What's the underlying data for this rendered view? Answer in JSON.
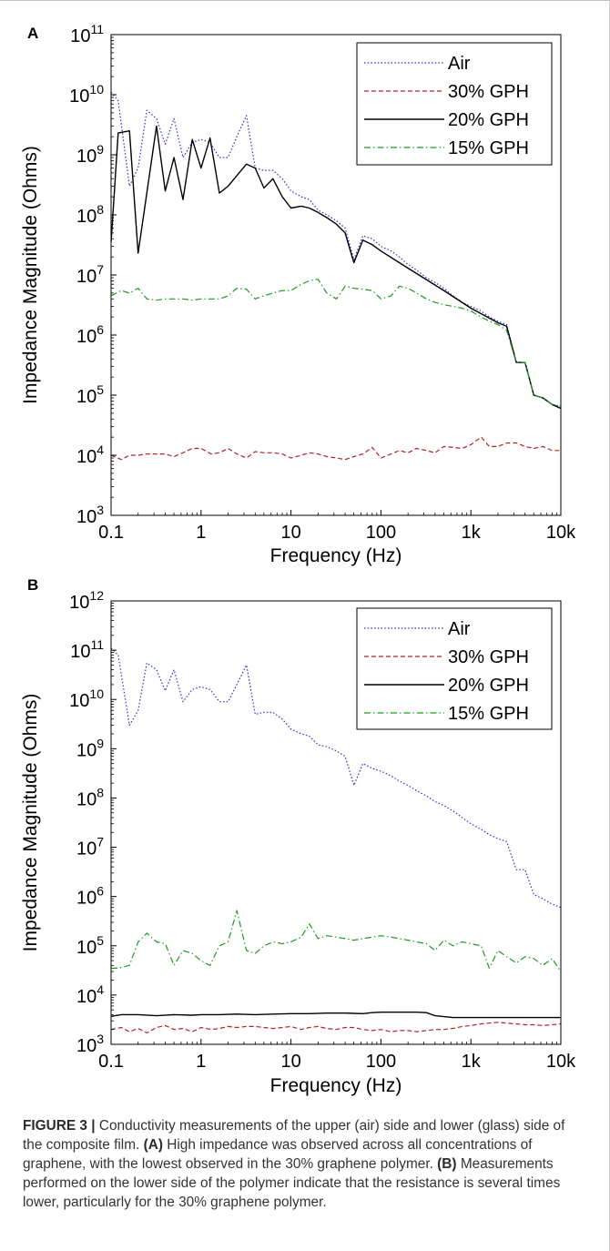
{
  "figure": {
    "caption_label": "FIGURE 3 |",
    "caption_text": "Conductivity measurements of the upper (air) side and lower (glass) side of the composite film.",
    "caption_a_label": "(A)",
    "caption_a_text": "High impedance was observed across all concentrations of graphene, with the lowest observed in the 30% graphene polymer.",
    "caption_b_label": "(B)",
    "caption_b_text": "Measurements performed on the lower side of the polymer indicate that the resistance is several times lower, particularly for the 30% graphene polymer."
  },
  "colors": {
    "air": "#2b2bd6",
    "gph30": "#b22222",
    "gph20": "#000000",
    "gph15": "#1f9a1f"
  },
  "chart_data": [
    {
      "panel": "A",
      "type": "line",
      "xlabel": "Frequency (Hz)",
      "ylabel": "Impedance Magnitude (Ohms)",
      "xscale": "log",
      "yscale": "log",
      "xlim": [
        0.1,
        10000
      ],
      "ylim": [
        1000,
        100000000000
      ],
      "x_ticks": [
        0.1,
        1,
        10,
        100,
        1000,
        10000
      ],
      "x_tick_labels": [
        "0.1",
        "1",
        "10",
        "100",
        "1k",
        "10k"
      ],
      "y_ticks": [
        1000,
        10000,
        100000,
        1000000,
        10000000,
        100000000,
        1000000000,
        10000000000,
        100000000000
      ],
      "y_tick_labels": [
        {
          "base": "10",
          "exp": "3"
        },
        {
          "base": "10",
          "exp": "4"
        },
        {
          "base": "10",
          "exp": "5"
        },
        {
          "base": "10",
          "exp": "6"
        },
        {
          "base": "10",
          "exp": "7"
        },
        {
          "base": "10",
          "exp": "8"
        },
        {
          "base": "10",
          "exp": "9"
        },
        {
          "base": "10",
          "exp": "10"
        },
        {
          "base": "10",
          "exp": "11"
        }
      ],
      "legend_position": "top-right",
      "series": [
        {
          "name": "Air",
          "style": "dotted",
          "x": [
            0.1,
            0.12,
            0.16,
            0.2,
            0.25,
            0.32,
            0.4,
            0.5,
            0.63,
            0.8,
            1.0,
            1.26,
            1.6,
            2.0,
            2.5,
            3.2,
            4.0,
            5.0,
            6.3,
            8.0,
            10,
            13,
            16,
            20,
            25,
            32,
            40,
            50,
            63,
            80,
            100,
            130,
            160,
            200,
            250,
            320,
            400,
            500,
            630,
            800,
            1000,
            1300,
            1600,
            2000,
            2500,
            3200,
            4000,
            5000,
            6300,
            8000,
            10000
          ],
          "y": [
            11000000000.0,
            8000000000.0,
            300000000.0,
            600000000.0,
            5500000000.0,
            4000000000.0,
            1500000000.0,
            4000000000.0,
            900000000.0,
            1600000000.0,
            1800000000.0,
            1600000000.0,
            900000000.0,
            900000000.0,
            2000000000.0,
            4500000000.0,
            600000000.0,
            550000000.0,
            550000000.0,
            400000000.0,
            250000000.0,
            200000000.0,
            180000000.0,
            120000000.0,
            100000000.0,
            80000000.0,
            60000000.0,
            18000000.0,
            45000000.0,
            40000000.0,
            30000000.0,
            25000000.0,
            20000000.0,
            15000000.0,
            12000000.0,
            9000000.0,
            7500000.0,
            6000000.0,
            4500000.0,
            3500000.0,
            3000000.0,
            2500000.0,
            2000000.0,
            1700000.0,
            1500000.0,
            350000.0,
            350000.0,
            100000.0,
            90000.0,
            70000.0,
            65000.0
          ]
        },
        {
          "name": "30% GPH",
          "style": "dashed",
          "x": [
            0.1,
            0.13,
            0.16,
            0.2,
            0.25,
            0.32,
            0.4,
            0.5,
            0.63,
            0.8,
            1.0,
            1.3,
            1.6,
            2.0,
            2.5,
            3.2,
            4.0,
            5.0,
            6.3,
            8.0,
            10,
            13,
            16,
            20,
            25,
            32,
            40,
            50,
            63,
            80,
            100,
            130,
            160,
            200,
            250,
            320,
            400,
            500,
            630,
            800,
            1000,
            1300,
            1600,
            2000,
            2500,
            3200,
            4000,
            5000,
            6300,
            8000,
            10000
          ],
          "y": [
            10000,
            8500,
            10000,
            10000,
            10500,
            10500,
            10500,
            9500,
            11000,
            13000,
            13000,
            10500,
            11000,
            13000,
            10500,
            9000,
            11500,
            11000,
            11000,
            10500,
            9000,
            10000,
            11000,
            10500,
            9500,
            9000,
            8500,
            9500,
            10500,
            13500,
            9000,
            10500,
            12000,
            11000,
            13000,
            12000,
            11000,
            14000,
            13500,
            13000,
            15000,
            20000,
            14000,
            14000,
            16000,
            16000,
            14000,
            13000,
            14000,
            12000,
            12000
          ]
        },
        {
          "name": "20% GPH",
          "style": "solid",
          "x": [
            0.1,
            0.12,
            0.16,
            0.2,
            0.32,
            0.4,
            0.5,
            0.63,
            0.8,
            1.0,
            1.26,
            1.6,
            2.0,
            2.5,
            3.2,
            4.0,
            5.0,
            6.3,
            8.0,
            10,
            13,
            16,
            20,
            25,
            32,
            40,
            50,
            63,
            80,
            100,
            200,
            500,
            1000,
            2000,
            2500,
            3200,
            4000,
            5000,
            6300,
            8000,
            10000
          ],
          "y": [
            35000000.0,
            2300000000.0,
            2500000000.0,
            23000000.0,
            3000000000.0,
            250000000.0,
            900000000.0,
            180000000.0,
            1800000000.0,
            600000000.0,
            1900000000.0,
            230000000.0,
            300000000.0,
            450000000.0,
            700000000.0,
            600000000.0,
            280000000.0,
            400000000.0,
            200000000.0,
            130000000.0,
            140000000.0,
            130000000.0,
            110000000.0,
            90000000.0,
            70000000.0,
            50000000.0,
            16000000.0,
            38000000.0,
            32000000.0,
            25000000.0,
            13000000.0,
            5500000.0,
            2800000.0,
            1600000.0,
            1400000.0,
            350000.0,
            350000.0,
            100000.0,
            90000.0,
            70000.0,
            60000.0
          ]
        },
        {
          "name": "15% GPH",
          "style": "dashdot",
          "x": [
            0.1,
            0.13,
            0.16,
            0.2,
            0.25,
            0.32,
            0.4,
            0.5,
            0.63,
            0.8,
            1.0,
            1.3,
            1.6,
            2.0,
            2.5,
            3.2,
            4.0,
            5.0,
            6.3,
            8.0,
            10,
            13,
            16,
            20,
            25,
            32,
            40,
            50,
            63,
            80,
            100,
            130,
            160,
            200,
            250,
            320,
            400,
            500,
            630,
            800,
            1000,
            1300,
            1600,
            2000,
            2500,
            3200,
            4000,
            5000,
            6300,
            8000,
            10000
          ],
          "y": [
            4500000.0,
            5500000.0,
            5000000.0,
            6000000.0,
            4000000.0,
            3800000.0,
            4000000.0,
            4000000.0,
            4000000.0,
            3800000.0,
            4000000.0,
            4000000.0,
            4000000.0,
            4500000.0,
            6000000.0,
            5800000.0,
            4000000.0,
            4500000.0,
            5000000.0,
            5500000.0,
            5500000.0,
            7000000.0,
            8000000.0,
            8500000.0,
            5000000.0,
            4000000.0,
            6500000.0,
            6000000.0,
            5800000.0,
            5500000.0,
            4000000.0,
            4500000.0,
            6500000.0,
            6000000.0,
            5000000.0,
            4000000.0,
            3500000.0,
            3200000.0,
            3000000.0,
            2800000.0,
            2500000.0,
            2000000.0,
            1700000.0,
            1500000.0,
            1200000.0,
            350000.0,
            350000.0,
            100000.0,
            90000.0,
            70000.0,
            65000.0
          ]
        }
      ]
    },
    {
      "panel": "B",
      "type": "line",
      "xlabel": "Frequency (Hz)",
      "ylabel": "Impedance Magnitude (Ohms)",
      "xscale": "log",
      "yscale": "log",
      "xlim": [
        0.1,
        10000
      ],
      "ylim": [
        1000,
        1000000000000
      ],
      "x_ticks": [
        0.1,
        1,
        10,
        100,
        1000,
        10000
      ],
      "x_tick_labels": [
        "0.1",
        "1",
        "10",
        "100",
        "1k",
        "10k"
      ],
      "y_ticks": [
        1000,
        10000,
        100000,
        1000000,
        10000000,
        100000000,
        1000000000,
        10000000000,
        100000000000,
        1000000000000
      ],
      "y_tick_labels": [
        {
          "base": "10",
          "exp": "3"
        },
        {
          "base": "10",
          "exp": "4"
        },
        {
          "base": "10",
          "exp": "5"
        },
        {
          "base": "10",
          "exp": "6"
        },
        {
          "base": "10",
          "exp": "7"
        },
        {
          "base": "10",
          "exp": "8"
        },
        {
          "base": "10",
          "exp": "9"
        },
        {
          "base": "10",
          "exp": "10"
        },
        {
          "base": "10",
          "exp": "11"
        },
        {
          "base": "10",
          "exp": "12"
        }
      ],
      "legend_position": "top-right",
      "series": [
        {
          "name": "Air",
          "style": "dotted",
          "x": [
            0.1,
            0.12,
            0.16,
            0.2,
            0.25,
            0.32,
            0.4,
            0.5,
            0.63,
            0.8,
            1.0,
            1.26,
            1.6,
            2.0,
            2.5,
            3.2,
            4.0,
            5.0,
            6.3,
            8.0,
            10,
            13,
            16,
            20,
            25,
            32,
            40,
            50,
            63,
            80,
            100,
            130,
            160,
            200,
            250,
            320,
            400,
            500,
            630,
            800,
            1000,
            1300,
            1600,
            2000,
            2500,
            3200,
            4000,
            5000,
            6300,
            8000,
            10000
          ],
          "y": [
            110000000000.0,
            80000000000.0,
            3000000000.0,
            6000000000.0,
            55000000000.0,
            40000000000.0,
            15000000000.0,
            40000000000.0,
            9000000000.0,
            16000000000.0,
            18000000000.0,
            16000000000.0,
            9000000000.0,
            9000000000.0,
            20000000000.0,
            50000000000.0,
            5000000000.0,
            5500000000.0,
            5500000000.0,
            4000000000.0,
            2500000000.0,
            2000000000.0,
            1800000000.0,
            1200000000.0,
            1100000000.0,
            900000000.0,
            700000000.0,
            180000000.0,
            500000000.0,
            400000000.0,
            350000000.0,
            280000000.0,
            220000000.0,
            180000000.0,
            140000000.0,
            110000000.0,
            85000000.0,
            70000000.0,
            55000000.0,
            40000000.0,
            30000000.0,
            23000000.0,
            18000000.0,
            15000000.0,
            13000000.0,
            3500000.0,
            3500000.0,
            1100000.0,
            900000.0,
            700000.0,
            600000.0
          ]
        },
        {
          "name": "30% GPH",
          "style": "dashed",
          "x": [
            0.1,
            0.13,
            0.16,
            0.2,
            0.25,
            0.32,
            0.4,
            0.5,
            0.63,
            0.8,
            1.0,
            1.3,
            1.6,
            2.0,
            2.5,
            3.2,
            4.0,
            5.0,
            6.3,
            8.0,
            10,
            13,
            16,
            20,
            25,
            32,
            40,
            50,
            63,
            80,
            100,
            130,
            160,
            200,
            250,
            320,
            400,
            500,
            630,
            800,
            1000,
            1300,
            1600,
            2000,
            2500,
            3200,
            4000,
            5000,
            6300,
            8000,
            10000
          ],
          "y": [
            2000,
            2200,
            1800,
            2100,
            1700,
            2200,
            2400,
            2000,
            2100,
            1800,
            2200,
            2000,
            2100,
            2300,
            2200,
            2300,
            2300,
            2200,
            2100,
            2200,
            2300,
            2000,
            2200,
            2300,
            2100,
            2000,
            2200,
            2200,
            2000,
            1900,
            2000,
            1800,
            1900,
            1900,
            1800,
            1900,
            2000,
            2000,
            2100,
            2300,
            2400,
            2600,
            2700,
            2800,
            2700,
            2600,
            2500,
            2500,
            2400,
            2500,
            2600
          ]
        },
        {
          "name": "20% GPH",
          "style": "solid",
          "x": [
            0.1,
            0.13,
            0.2,
            0.32,
            0.5,
            0.8,
            1.0,
            1.6,
            2.5,
            4.0,
            6.3,
            10,
            16,
            25,
            40,
            63,
            80,
            100,
            160,
            250,
            320,
            400,
            630,
            1000,
            1600,
            2500,
            4000,
            6300,
            10000
          ],
          "y": [
            3700,
            4000,
            4000,
            3800,
            4000,
            3900,
            4000,
            4000,
            4100,
            4000,
            4100,
            4200,
            4200,
            4300,
            4300,
            4200,
            4400,
            4500,
            4500,
            4500,
            4400,
            3800,
            3500,
            3500,
            3500,
            3500,
            3500,
            3500,
            3500
          ]
        },
        {
          "name": "15% GPH",
          "style": "dashdot",
          "x": [
            0.1,
            0.12,
            0.16,
            0.2,
            0.25,
            0.32,
            0.4,
            0.5,
            0.63,
            0.8,
            1.0,
            1.26,
            1.6,
            2.0,
            2.5,
            3.2,
            4.0,
            5.0,
            6.3,
            8.0,
            10,
            13,
            16,
            20,
            25,
            32,
            40,
            50,
            63,
            80,
            100,
            130,
            160,
            200,
            250,
            320,
            400,
            500,
            630,
            800,
            1000,
            1300,
            1600,
            2000,
            2500,
            3200,
            4000,
            5000,
            6300,
            8000,
            10000
          ],
          "y": [
            35000,
            35000,
            40000,
            120000,
            180000,
            120000,
            110000,
            40000,
            80000,
            70000,
            50000,
            40000,
            100000,
            120000,
            520000,
            80000,
            70000,
            100000,
            120000,
            110000,
            120000,
            150000,
            280000,
            140000,
            160000,
            150000,
            140000,
            130000,
            140000,
            150000,
            160000,
            150000,
            140000,
            130000,
            120000,
            110000,
            80000,
            130000,
            100000,
            120000,
            110000,
            100000,
            35000,
            80000,
            60000,
            45000,
            60000,
            55000,
            40000,
            55000,
            30000
          ]
        }
      ]
    }
  ]
}
